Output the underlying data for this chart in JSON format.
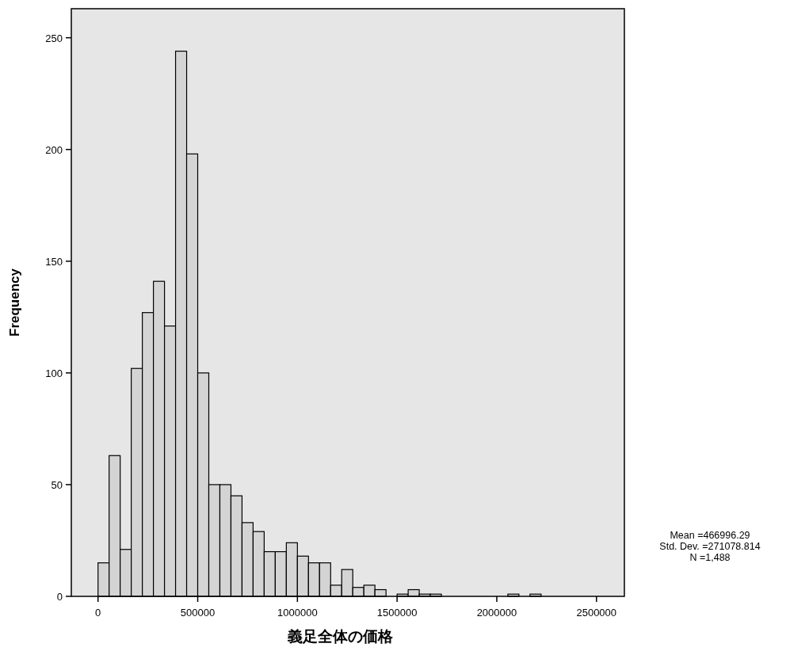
{
  "chart_data": {
    "type": "histogram",
    "xlabel": "義足全体の価格",
    "ylabel": "Frequency",
    "annotations": [
      "Mean =466996.29",
      "Std. Dev. =271078.814",
      "N =1,488"
    ],
    "bins": [
      0,
      55556,
      111111,
      166667,
      222222,
      277778,
      333333,
      388889,
      444444,
      500000,
      555556,
      611111,
      666667,
      722222,
      777778,
      833333,
      888889,
      944444,
      1000000,
      1055556,
      1111111,
      1166667,
      1222222,
      1277778,
      1333333,
      1388889,
      1444444,
      1500000,
      1555556,
      1611111,
      1666667,
      1722222,
      1777778,
      1833333,
      1888889,
      1944444,
      2000000,
      2055556,
      2111111,
      2166667,
      2222222
    ],
    "values": [
      15,
      63,
      21,
      102,
      127,
      141,
      121,
      244,
      198,
      100,
      50,
      50,
      45,
      33,
      29,
      20,
      20,
      24,
      18,
      15,
      15,
      5,
      12,
      4,
      5,
      3,
      0,
      1,
      3,
      1,
      1,
      0,
      0,
      0,
      0,
      0,
      0,
      1,
      0,
      1
    ],
    "color": "#d4d4d4",
    "xlim": [
      -134000,
      2640000
    ],
    "ylim": [
      0,
      263
    ],
    "xticks": [
      0,
      500000,
      1000000,
      1500000,
      2000000,
      2500000
    ],
    "yticks": [
      0,
      50,
      100,
      150,
      200,
      250
    ]
  }
}
